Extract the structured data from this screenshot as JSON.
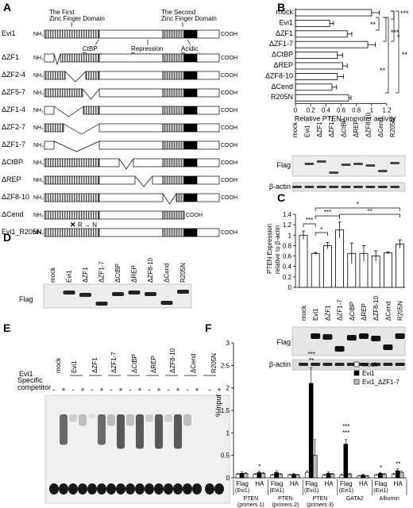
{
  "panels": [
    "A",
    "B",
    "C",
    "D",
    "E",
    "F"
  ],
  "panel_a": {
    "domain_labels": {
      "first_zf": "The First\nZinc Finger Domain",
      "second_zf": "The Second\nZinc Finger Domain",
      "ctbp": "CtBP\nDomain",
      "repression": "Repression\nDomain",
      "acidic": "Acidic\nDomain"
    },
    "n_term": "NH₂",
    "c_term": "COOH",
    "constructs": [
      "Evi1",
      "ΔZF1",
      "ΔZF2-4",
      "ΔZF5-7",
      "ΔZF1-4",
      "ΔZF2-7",
      "ΔZF1-7",
      "ΔCtBP",
      "ΔREP",
      "ΔZF8-10",
      "ΔCend",
      "Evi1_R205N"
    ],
    "mutation_label": "R → N"
  },
  "blot_labels": {
    "flag": "Flag",
    "actin": "β-actin"
  },
  "lane_labels": [
    "mock",
    "Evi1",
    "ΔZF1",
    "ΔZF1-7",
    "ΔCtBP",
    "ΔREP",
    "ΔZF8-10",
    "ΔCend",
    "R205N"
  ],
  "chart_data": [
    {
      "panel": "B",
      "type": "bar",
      "orientation": "horizontal",
      "categories": [
        "mock",
        "Evi1",
        "ΔZF1",
        "ΔZF1-7",
        "ΔCtBP",
        "ΔREP",
        "ΔZF8-10",
        "ΔCend",
        "R205N"
      ],
      "values": [
        1.0,
        0.45,
        0.68,
        0.95,
        0.55,
        0.62,
        0.55,
        0.48,
        0.7
      ],
      "errors": [
        0.1,
        0.05,
        0.06,
        0.1,
        0.07,
        0.06,
        0.08,
        0.06,
        0.03
      ],
      "xlabel": "Relative PTEN promoter activity",
      "xlim": [
        0,
        1.2
      ],
      "xticks": [
        "0",
        "0.2",
        "0.4",
        "0.6",
        "0.8",
        "1",
        "1.2"
      ],
      "significance": [
        "***",
        "**",
        "***",
        "*",
        "**",
        "**"
      ]
    },
    {
      "panel": "C",
      "type": "bar",
      "categories": [
        "mock",
        "Evi1",
        "ΔZF1",
        "ΔZF1-7",
        "ΔCtBP",
        "ΔREP",
        "ΔZF8-10",
        "ΔCend",
        "R205N"
      ],
      "values": [
        1.0,
        0.65,
        0.8,
        1.1,
        0.65,
        0.65,
        0.6,
        0.66,
        0.83
      ],
      "errors": [
        0.08,
        0.02,
        0.06,
        0.15,
        0.2,
        0.15,
        0.1,
        0.02,
        0.08
      ],
      "ylabel": "PTEN Expression\nrelative to β-actin",
      "ylim": [
        0,
        1.4
      ],
      "yticks": [
        "0",
        "0.2",
        "0.4",
        "0.6",
        "0.8",
        "1",
        "1.2",
        "1.4"
      ],
      "significance": [
        "***",
        "*",
        "***",
        "*",
        "**"
      ]
    },
    {
      "panel": "F",
      "type": "bar",
      "series": [
        {
          "name": "mock",
          "color": "#ffffff"
        },
        {
          "name": "Evi1",
          "color": "#000000"
        },
        {
          "name": "Evi1_ΔZF1-7",
          "color": "#bbbbbb"
        }
      ],
      "groups": [
        {
          "antibody": "Flag",
          "tag": "(Evi1)",
          "values": [
            0.08,
            0.1,
            0.1
          ],
          "errors": [
            0.02,
            0.03,
            0.02
          ]
        },
        {
          "antibody": "HA",
          "tag": "",
          "values": [
            0.08,
            0.12,
            0.1
          ],
          "errors": [
            0.02,
            0.03,
            0.02
          ],
          "sig": "*"
        },
        {
          "antibody": "Flag",
          "tag": "(Evi1)",
          "values": [
            0.06,
            0.12,
            0.08
          ],
          "errors": [
            0.02,
            0.04,
            0.02
          ]
        },
        {
          "antibody": "HA",
          "tag": "",
          "values": [
            0.06,
            0.08,
            0.06
          ],
          "errors": [
            0.02,
            0.02,
            0.02
          ]
        },
        {
          "antibody": "Flag",
          "tag": "(Evi1)",
          "values": [
            0.12,
            2.1,
            0.5
          ],
          "errors": [
            0.03,
            0.35,
            0.35
          ],
          "sig": "***\n**"
        },
        {
          "antibody": "HA",
          "tag": "",
          "values": [
            0.06,
            0.1,
            0.08
          ],
          "errors": [
            0.02,
            0.03,
            0.02
          ]
        },
        {
          "antibody": "Flag",
          "tag": "(Evi1)",
          "values": [
            0.06,
            0.75,
            0.08
          ],
          "errors": [
            0.02,
            0.1,
            0.02
          ],
          "sig": "***\n***"
        },
        {
          "antibody": "HA",
          "tag": "",
          "values": [
            0.04,
            0.06,
            0.04
          ],
          "errors": [
            0.01,
            0.02,
            0.01
          ]
        },
        {
          "antibody": "Flag",
          "tag": "(Evi1)",
          "values": [
            0.06,
            0.1,
            0.08
          ],
          "errors": [
            0.02,
            0.02,
            0.02
          ],
          "sig": "*"
        },
        {
          "antibody": "HA",
          "tag": "",
          "values": [
            0.08,
            0.16,
            0.12
          ],
          "errors": [
            0.02,
            0.04,
            0.03
          ],
          "sig": "**"
        }
      ],
      "loci": [
        "PTEN\n(primers 1)",
        "PTEN\n(primers 2)",
        "PTEN\n(primers 3)",
        "GATA2",
        "Albumin"
      ],
      "ylabel": "%Input",
      "ylim": [
        0,
        3
      ],
      "yticks": [
        "0",
        "0.5",
        "1",
        "1.5",
        "2",
        "2.5",
        "3"
      ]
    }
  ],
  "panel_e": {
    "sample_label": "Evi1",
    "lanes": [
      "mock",
      "Evi1",
      "ΔZF1",
      "ΔZF1-7",
      "ΔCtBP",
      "ΔREP",
      "ΔZF8-10",
      "ΔCend",
      "R205N"
    ],
    "competitor_label": "Specific\ncompetitor",
    "minus": "-",
    "plus": "+"
  }
}
